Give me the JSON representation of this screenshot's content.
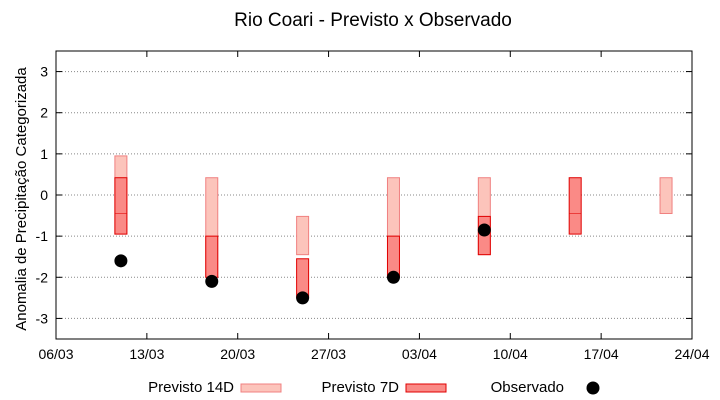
{
  "chart_data": {
    "type": "boxplot",
    "title": "Rio Coari - Previsto x Observado",
    "xlabel": "",
    "ylabel": "Anomalia de Precipitação Categorizada",
    "ylim": [
      -3.5,
      3.5
    ],
    "yticks": [
      3,
      2,
      1,
      0,
      -1,
      -2,
      -3
    ],
    "ytick_labels": [
      "3",
      "2",
      "1",
      "0",
      "-1",
      "-2",
      "-3"
    ],
    "xlim_days": [
      0,
      49
    ],
    "xticks": [
      {
        "day": 0,
        "label": "06/03"
      },
      {
        "day": 7,
        "label": "13/03"
      },
      {
        "day": 14,
        "label": "20/03"
      },
      {
        "day": 21,
        "label": "27/03"
      },
      {
        "day": 28,
        "label": "03/04"
      },
      {
        "day": 35,
        "label": "10/04"
      },
      {
        "day": 42,
        "label": "17/04"
      },
      {
        "day": 49,
        "label": "24/04"
      }
    ],
    "grid": "horizontal dotted",
    "legend_position": "bottom",
    "colors": {
      "previsto14d_fill": "#fcc4bb",
      "previsto14d_edge": "#f08080",
      "previsto7d_fill": "#fa8a86",
      "previsto7d_edge": "#e00000",
      "observado": "#000000",
      "grid": "#888888"
    },
    "series": [
      {
        "name": "Previsto 14D",
        "style": "light-box",
        "points": [
          {
            "day": 5,
            "low": -0.95,
            "mid": -0.45,
            "high": 0.95
          },
          {
            "day": 12,
            "low": -2.0,
            "mid": -1.0,
            "high": 0.42
          },
          {
            "day": 19,
            "low": -1.45,
            "mid": -1.45,
            "high": -0.52
          },
          {
            "day": 26,
            "low": -1.0,
            "mid": -1.0,
            "high": 0.42
          },
          {
            "day": 33,
            "low": -1.45,
            "mid": -0.52,
            "high": 0.42
          },
          {
            "day": 47,
            "low": -0.45,
            "mid": -0.45,
            "high": 0.42
          }
        ]
      },
      {
        "name": "Previsto 7D",
        "style": "dark-box",
        "points": [
          {
            "day": 5,
            "low": -0.95,
            "mid": -0.45,
            "high": 0.42
          },
          {
            "day": 12,
            "low": -2.0,
            "mid": -1.0,
            "high": -1.0
          },
          {
            "day": 19,
            "low": -2.5,
            "mid": -1.55,
            "high": -1.55
          },
          {
            "day": 26,
            "low": -2.0,
            "mid": -1.0,
            "high": -1.0
          },
          {
            "day": 33,
            "low": -1.45,
            "mid": -0.52,
            "high": -0.52
          },
          {
            "day": 40,
            "low": -0.95,
            "mid": -0.45,
            "high": 0.42
          }
        ]
      },
      {
        "name": "Observado",
        "style": "dot",
        "points": [
          {
            "day": 5,
            "value": -1.6
          },
          {
            "day": 12,
            "value": -2.1
          },
          {
            "day": 19,
            "value": -2.5
          },
          {
            "day": 26,
            "value": -2.0
          },
          {
            "day": 33,
            "value": -0.85
          }
        ]
      }
    ]
  }
}
